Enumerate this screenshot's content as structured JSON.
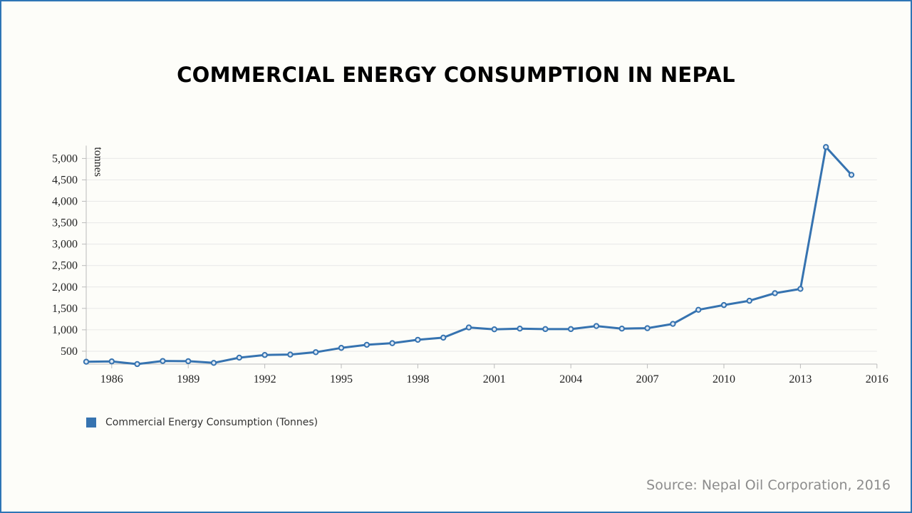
{
  "chart_data": {
    "type": "line",
    "title": "COMMERCIAL ENERGY CONSUMPTION IN NEPAL",
    "ylabel": "tonnes",
    "xlabel": "",
    "x": [
      1985,
      1986,
      1987,
      1988,
      1989,
      1990,
      1991,
      1992,
      1993,
      1994,
      1995,
      1996,
      1997,
      1998,
      1999,
      2000,
      2001,
      2002,
      2003,
      2004,
      2005,
      2006,
      2007,
      2008,
      2009,
      2010,
      2011,
      2012,
      2013,
      2014,
      2015
    ],
    "series": [
      {
        "name": "Commercial Energy Consumption (Tonnes)",
        "color": "#3673b0",
        "values": [
          255,
          262,
          200,
          272,
          267,
          228,
          350,
          412,
          422,
          478,
          578,
          650,
          688,
          767,
          817,
          1055,
          1012,
          1028,
          1017,
          1017,
          1088,
          1028,
          1038,
          1138,
          1467,
          1578,
          1678,
          1855,
          1955,
          5267,
          4617
        ]
      }
    ],
    "xlim": [
      1985,
      2016
    ],
    "ylim": [
      200,
      5300
    ],
    "xticks": [
      "1986",
      "1989",
      "1992",
      "1995",
      "1998",
      "2001",
      "2004",
      "2007",
      "2010",
      "2013",
      "2016"
    ],
    "yticks": [
      "500",
      "1,000",
      "1,500",
      "2,000",
      "2,500",
      "3,000",
      "3,500",
      "4,000",
      "4,500",
      "5,000"
    ],
    "grid": true,
    "legend": "bottom-left"
  },
  "source": "Source: Nepal Oil Corporation, 2016",
  "colors": {
    "border": "#2e75b6",
    "line": "#3673b0"
  }
}
